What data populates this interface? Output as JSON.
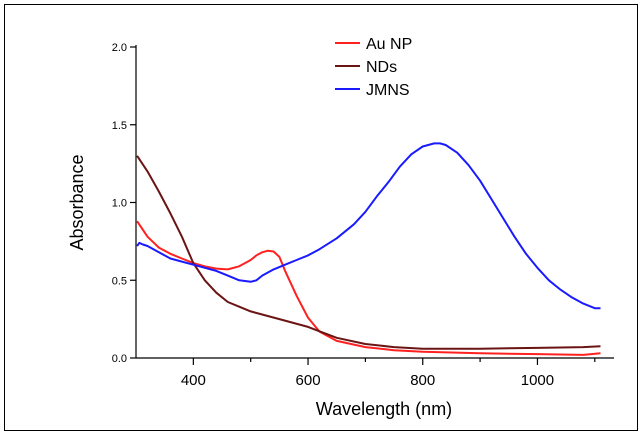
{
  "chart_data": {
    "type": "line",
    "xlabel": "Wavelength (nm)",
    "ylabel": "Absorbance",
    "xlim": [
      300,
      1130
    ],
    "ylim": [
      0,
      2.0
    ],
    "xticks": [
      400,
      600,
      800,
      1000
    ],
    "yticks": [
      "0.0",
      "0.5",
      "1.0",
      "1.5",
      "2.0"
    ],
    "legend_position": "top-center",
    "series": [
      {
        "name": "Au NP",
        "color": "#ff2020",
        "x": [
          302,
          320,
          340,
          360,
          380,
          400,
          420,
          440,
          460,
          480,
          500,
          510,
          520,
          530,
          540,
          550,
          560,
          580,
          600,
          620,
          650,
          700,
          750,
          800,
          900,
          1000,
          1080,
          1110
        ],
        "y": [
          0.88,
          0.78,
          0.71,
          0.67,
          0.64,
          0.61,
          0.59,
          0.575,
          0.57,
          0.59,
          0.63,
          0.66,
          0.68,
          0.69,
          0.685,
          0.65,
          0.56,
          0.4,
          0.26,
          0.17,
          0.11,
          0.07,
          0.05,
          0.04,
          0.03,
          0.025,
          0.02,
          0.03
        ]
      },
      {
        "name": "NDs",
        "color": "#6b1414",
        "x": [
          302,
          320,
          340,
          360,
          380,
          400,
          420,
          440,
          460,
          480,
          500,
          550,
          600,
          650,
          700,
          750,
          800,
          900,
          1000,
          1080,
          1110
        ],
        "y": [
          1.3,
          1.2,
          1.07,
          0.93,
          0.78,
          0.61,
          0.5,
          0.42,
          0.36,
          0.33,
          0.3,
          0.25,
          0.2,
          0.13,
          0.09,
          0.07,
          0.06,
          0.06,
          0.065,
          0.07,
          0.075
        ]
      },
      {
        "name": "JMNS",
        "color": "#1a1aff",
        "x": [
          302,
          306,
          312,
          320,
          340,
          360,
          380,
          400,
          420,
          440,
          460,
          480,
          500,
          510,
          520,
          540,
          560,
          580,
          600,
          620,
          650,
          680,
          700,
          720,
          740,
          760,
          780,
          800,
          820,
          830,
          840,
          860,
          880,
          900,
          920,
          940,
          960,
          980,
          1000,
          1020,
          1040,
          1060,
          1080,
          1100,
          1110
        ],
        "y": [
          0.72,
          0.74,
          0.73,
          0.72,
          0.68,
          0.64,
          0.62,
          0.6,
          0.58,
          0.56,
          0.53,
          0.5,
          0.49,
          0.5,
          0.53,
          0.57,
          0.6,
          0.63,
          0.66,
          0.7,
          0.77,
          0.86,
          0.94,
          1.04,
          1.13,
          1.23,
          1.31,
          1.36,
          1.38,
          1.38,
          1.37,
          1.32,
          1.24,
          1.14,
          1.02,
          0.9,
          0.78,
          0.67,
          0.58,
          0.5,
          0.44,
          0.39,
          0.35,
          0.32,
          0.32
        ]
      }
    ]
  }
}
